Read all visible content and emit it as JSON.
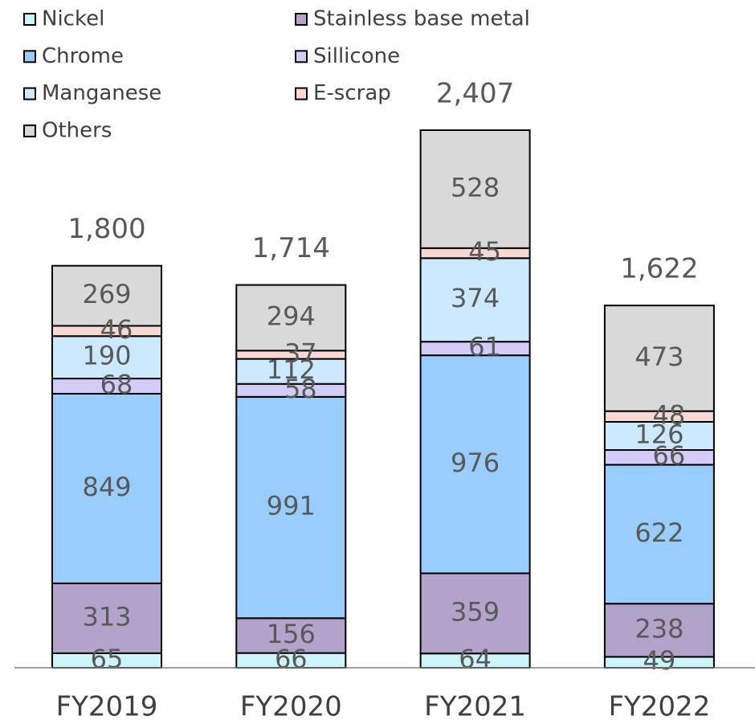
{
  "chart_data": {
    "type": "stacked_bar",
    "categories": [
      "FY2019",
      "FY2020",
      "FY2021",
      "FY2022"
    ],
    "series": [
      {
        "name": "Nickel",
        "color": "#ccf5fa",
        "values": [
          65,
          66,
          64,
          49
        ]
      },
      {
        "name": "Stainless base metal",
        "color": "#b3a2c9",
        "values": [
          313,
          156,
          359,
          238
        ]
      },
      {
        "name": "Chrome",
        "color": "#99ccff",
        "values": [
          849,
          991,
          976,
          622
        ]
      },
      {
        "name": "Sillicone",
        "color": "#d2ccf7",
        "values": [
          68,
          58,
          61,
          66
        ]
      },
      {
        "name": "Manganese",
        "color": "#cce9ff",
        "values": [
          190,
          112,
          374,
          126
        ]
      },
      {
        "name": "E-scrap",
        "color": "#f8d8d3",
        "values": [
          46,
          37,
          45,
          48
        ]
      },
      {
        "name": "Others",
        "color": "#d9d9d9",
        "values": [
          269,
          294,
          528,
          473
        ]
      }
    ],
    "totals": {
      "values": [
        1800,
        1714,
        2407,
        1622
      ],
      "value_labels": [
        "1,800",
        "1,714",
        "2,407",
        "1,622"
      ]
    }
  }
}
